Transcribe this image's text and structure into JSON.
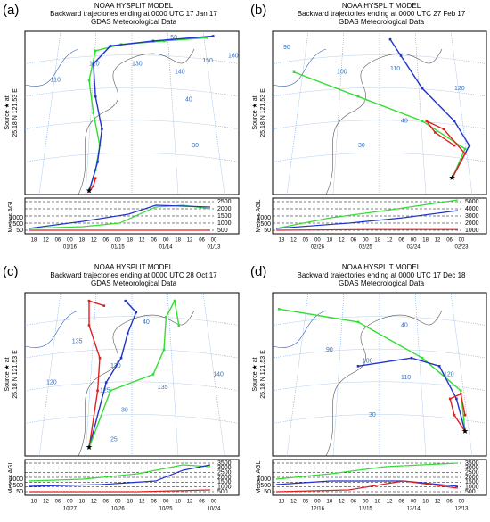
{
  "panels": [
    {
      "label": "(a)",
      "title": [
        "NOAA HYSPLIT MODEL",
        "Backward trajectories ending at 0000 UTC 17 Jan 17",
        "GDAS Meteorological Data"
      ],
      "source": [
        "Source ★ at",
        "25.18 N 121.53 E"
      ],
      "y_axis_label": "Meters AGL",
      "map_labels": [
        "50",
        "110",
        "120",
        "130",
        "140",
        "150",
        "160",
        "40",
        "30"
      ],
      "height_ticks": [
        "2500",
        "2000",
        "1500",
        "1000",
        "500"
      ],
      "left_ticks": [
        "1000",
        "500",
        "50"
      ],
      "hours": [
        "18",
        "12",
        "06",
        "00",
        "18",
        "12",
        "06",
        "00",
        "18",
        "12",
        "06",
        "00",
        "18",
        "12",
        "06",
        "00"
      ],
      "dates": [
        "01/16",
        "01/15",
        "01/14",
        "01/13"
      ]
    },
    {
      "label": "(b)",
      "title": [
        "NOAA HYSPLIT MODEL",
        "Backward trajectories ending at 0000 UTC 27 Feb 17",
        "GDAS Meteorological Data"
      ],
      "source": [
        "Source ★ at",
        "25.18 N 121.53 E"
      ],
      "y_axis_label": "Meters AGL",
      "map_labels": [
        "90",
        "100",
        "110",
        "120",
        "30",
        "40"
      ],
      "height_ticks": [
        "5000",
        "4000",
        "3000",
        "2000",
        "1000"
      ],
      "left_ticks": [
        "1000",
        "500",
        "50"
      ],
      "hours": [
        "18",
        "12",
        "06",
        "00",
        "18",
        "12",
        "06",
        "00",
        "18",
        "12",
        "06",
        "00",
        "18",
        "12",
        "06",
        "00"
      ],
      "dates": [
        "02/26",
        "02/25",
        "02/24",
        "02/23"
      ]
    },
    {
      "label": "(c)",
      "title": [
        "NOAA HYSPLIT MODEL",
        "Backward trajectories ending at 0000 UTC 28 Oct 17",
        "GDAS Meteorological Data"
      ],
      "source": [
        "Source ★ at",
        "25.18 N 121.53 E"
      ],
      "y_axis_label": "Meters AGL",
      "map_labels": [
        "40",
        "135",
        "130",
        "120",
        "125",
        "135",
        "140",
        "30",
        "25"
      ],
      "height_ticks": [
        "3500",
        "3000",
        "2500",
        "2000",
        "1500",
        "1000",
        "500"
      ],
      "left_ticks": [
        "1000",
        "500",
        "50"
      ],
      "hours": [
        "18",
        "12",
        "06",
        "00",
        "18",
        "12",
        "06",
        "00",
        "18",
        "12",
        "06",
        "00",
        "18",
        "12",
        "06",
        "00"
      ],
      "dates": [
        "10/27",
        "10/26",
        "10/25",
        "10/24"
      ]
    },
    {
      "label": "(d)",
      "title": [
        "NOAA HYSPLIT MODEL",
        "Backward trajectories ending at 0000 UTC 17 Dec 18",
        "GDAS Meteorological Data"
      ],
      "source": [
        "Source ★ at",
        "25.18 N 121.53 E"
      ],
      "y_axis_label": "Meters AGL",
      "map_labels": [
        "40",
        "90",
        "100",
        "110",
        "120",
        "30"
      ],
      "height_ticks": [
        "3500",
        "3000",
        "2500",
        "2000",
        "1500",
        "1000",
        "500"
      ],
      "left_ticks": [
        "1000",
        "500",
        "50"
      ],
      "hours": [
        "18",
        "12",
        "06",
        "00",
        "18",
        "12",
        "06",
        "00",
        "18",
        "12",
        "06",
        "00",
        "18",
        "12",
        "06",
        "00"
      ],
      "dates": [
        "12/16",
        "12/15",
        "12/14",
        "12/13"
      ]
    }
  ]
}
